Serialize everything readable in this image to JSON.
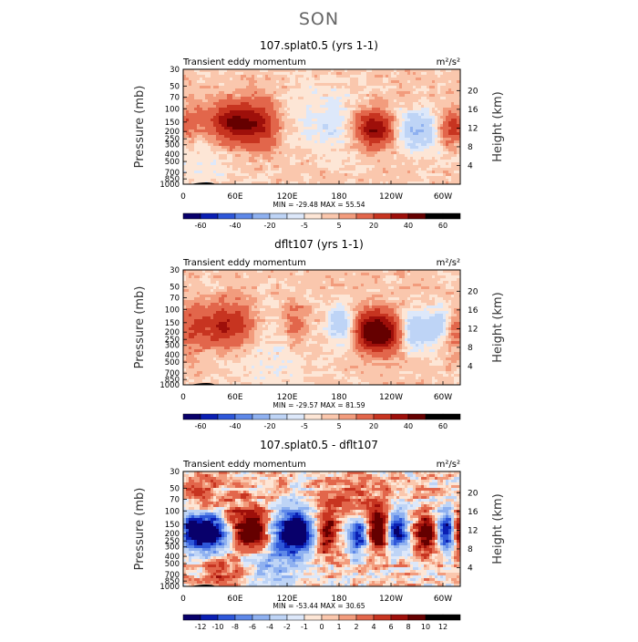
{
  "page": {
    "season": "SON"
  },
  "colors": {
    "seq": [
      "#08006b",
      "#0a1fb3",
      "#2e57d9",
      "#5e88e8",
      "#8fb1f0",
      "#bed4f6",
      "#dde8fa",
      "#fde6d6",
      "#fac7ad",
      "#f29c7d",
      "#e2664b",
      "#c73420",
      "#9e0f0a",
      "#650000"
    ],
    "diff": [
      "#08006b",
      "#0a1fb3",
      "#2e57d9",
      "#5e88e8",
      "#8fb1f0",
      "#bed4f6",
      "#dde8fa",
      "#fde6d6",
      "#fac7ad",
      "#f29c7d",
      "#e2664b",
      "#c73420",
      "#9e0f0a",
      "#650000"
    ]
  },
  "chart_data": [
    {
      "type": "heatmap",
      "title": "107.splat0.5 (yrs 1-1)",
      "subtitle": "Transient eddy momentum",
      "units": "m²/s²",
      "ylabel_left": "Pressure  (mb)",
      "ylabel_right": "Height  (km)",
      "pressure_ticks": [
        "30",
        "50",
        "70",
        "100",
        "150",
        "200",
        "250",
        "300",
        "400",
        "500",
        "700",
        "850",
        "1000"
      ],
      "pressure_values": [
        30,
        50,
        70,
        100,
        150,
        200,
        250,
        300,
        400,
        500,
        700,
        850,
        1000
      ],
      "height_ticks": [
        "20",
        "16",
        "12",
        "8",
        "4"
      ],
      "height_values": [
        20,
        16,
        12,
        8,
        4
      ],
      "x_ticks": [
        "0",
        "60E",
        "120E",
        "180",
        "120W",
        "60W"
      ],
      "x_values": [
        0,
        60,
        120,
        180,
        240,
        300
      ],
      "xlim": [
        0,
        320
      ],
      "min_max_text": "MIN = -29.48   MAX =  55.54",
      "colorbar_labels": [
        "-60",
        "-40",
        "-20",
        "-5",
        "5",
        "20",
        "40",
        "60"
      ],
      "colorbar_levels": [
        -70,
        -60,
        -50,
        -40,
        -30,
        -20,
        -10,
        -5,
        0,
        5,
        10,
        20,
        30,
        40,
        50,
        60,
        70
      ],
      "base": 2,
      "noise": 6,
      "blobs": [
        {
          "lon": 60,
          "p": 155,
          "v": 40,
          "slon": 22,
          "slogp": 0.13
        },
        {
          "lon": 90,
          "p": 160,
          "v": 18,
          "slon": 14,
          "slogp": 0.15
        },
        {
          "lon": 5,
          "p": 150,
          "v": 14,
          "slon": 10,
          "slogp": 0.12
        },
        {
          "lon": 225,
          "p": 185,
          "v": 38,
          "slon": 14,
          "slogp": 0.11
        },
        {
          "lon": 205,
          "p": 180,
          "v": 12,
          "slon": 14,
          "slogp": 0.12
        },
        {
          "lon": 310,
          "p": 180,
          "v": 26,
          "slon": 12,
          "slogp": 0.1
        },
        {
          "lon": 270,
          "p": 190,
          "v": -22,
          "slon": 22,
          "slogp": 0.12
        },
        {
          "lon": 185,
          "p": 170,
          "v": -8,
          "slon": 20,
          "slogp": 0.18
        },
        {
          "lon": 150,
          "p": 130,
          "v": -7,
          "slon": 22,
          "slogp": 0.2
        },
        {
          "lon": 20,
          "p": 500,
          "v": -6,
          "slon": 35,
          "slogp": 0.25
        }
      ]
    },
    {
      "type": "heatmap",
      "title": "dflt107 (yrs 1-1)",
      "subtitle": "Transient eddy momentum",
      "units": "m²/s²",
      "ylabel_left": "Pressure  (mb)",
      "ylabel_right": "Height  (km)",
      "pressure_ticks": [
        "30",
        "50",
        "70",
        "100",
        "150",
        "200",
        "250",
        "300",
        "400",
        "500",
        "700",
        "850",
        "1000"
      ],
      "pressure_values": [
        30,
        50,
        70,
        100,
        150,
        200,
        250,
        300,
        400,
        500,
        700,
        850,
        1000
      ],
      "height_ticks": [
        "20",
        "16",
        "12",
        "8",
        "4"
      ],
      "height_values": [
        20,
        16,
        12,
        8,
        4
      ],
      "x_ticks": [
        "0",
        "60E",
        "120E",
        "180",
        "120W",
        "60W"
      ],
      "x_values": [
        0,
        60,
        120,
        180,
        240,
        300
      ],
      "xlim": [
        0,
        320
      ],
      "min_max_text": "MIN = -29.57   MAX =  81.59",
      "colorbar_labels": [
        "-60",
        "-40",
        "-20",
        "-5",
        "5",
        "20",
        "40",
        "60"
      ],
      "colorbar_levels": [
        -70,
        -60,
        -50,
        -40,
        -30,
        -20,
        -10,
        -5,
        0,
        5,
        10,
        20,
        30,
        40,
        50,
        60,
        70
      ],
      "base": 2,
      "noise": 6,
      "blobs": [
        {
          "lon": 50,
          "p": 165,
          "v": 30,
          "slon": 22,
          "slogp": 0.14
        },
        {
          "lon": 10,
          "p": 175,
          "v": 15,
          "slon": 10,
          "slogp": 0.14
        },
        {
          "lon": 130,
          "p": 160,
          "v": 16,
          "slon": 10,
          "slogp": 0.13
        },
        {
          "lon": 220,
          "p": 195,
          "v": 52,
          "slon": 15,
          "slogp": 0.12
        },
        {
          "lon": 242,
          "p": 210,
          "v": 24,
          "slon": 10,
          "slogp": 0.12
        },
        {
          "lon": 312,
          "p": 180,
          "v": 14,
          "slon": 9,
          "slogp": 0.12
        },
        {
          "lon": 265,
          "p": 190,
          "v": -20,
          "slon": 18,
          "slogp": 0.12
        },
        {
          "lon": 183,
          "p": 160,
          "v": -20,
          "slon": 10,
          "slogp": 0.12
        },
        {
          "lon": 298,
          "p": 160,
          "v": -14,
          "slon": 10,
          "slogp": 0.12
        },
        {
          "lon": 100,
          "p": 400,
          "v": -6,
          "slon": 40,
          "slogp": 0.3
        }
      ]
    },
    {
      "type": "heatmap",
      "title": "107.splat0.5 - dflt107",
      "subtitle": "Transient eddy momentum",
      "units": "m²/s²",
      "ylabel_left": "Pressure  (mb)",
      "ylabel_right": "Height  (km)",
      "pressure_ticks": [
        "30",
        "50",
        "70",
        "100",
        "150",
        "200",
        "250",
        "300",
        "400",
        "500",
        "700",
        "850",
        "1000"
      ],
      "pressure_values": [
        30,
        50,
        70,
        100,
        150,
        200,
        250,
        300,
        400,
        500,
        700,
        850,
        1000
      ],
      "height_ticks": [
        "20",
        "16",
        "12",
        "8",
        "4"
      ],
      "height_values": [
        20,
        16,
        12,
        8,
        4
      ],
      "x_ticks": [
        "0",
        "60E",
        "120E",
        "180",
        "120W",
        "60W"
      ],
      "x_values": [
        0,
        60,
        120,
        180,
        240,
        300
      ],
      "xlim": [
        0,
        320
      ],
      "min_max_text": "MIN = -53.44   MAX =  30.65",
      "colorbar_labels": [
        "-12",
        "-10",
        "-8",
        "-6",
        "-4",
        "-2",
        "-1",
        "0",
        "1",
        "2",
        "4",
        "6",
        "8",
        "10",
        "12"
      ],
      "colorbar_levels": [
        -14,
        -12,
        -10,
        -8,
        -6,
        -4,
        -2,
        -1,
        0,
        1,
        2,
        4,
        6,
        8,
        10,
        12,
        14
      ],
      "base": 0,
      "noise": 4,
      "blobs": [
        {
          "lon": 30,
          "p": 190,
          "v": -18,
          "slon": 14,
          "slogp": 0.12
        },
        {
          "lon": 8,
          "p": 180,
          "v": -10,
          "slon": 8,
          "slogp": 0.12
        },
        {
          "lon": 80,
          "p": 185,
          "v": 16,
          "slon": 12,
          "slogp": 0.13
        },
        {
          "lon": 55,
          "p": 130,
          "v": 5,
          "slon": 10,
          "slogp": 0.12
        },
        {
          "lon": 130,
          "p": 185,
          "v": -18,
          "slon": 14,
          "slogp": 0.12
        },
        {
          "lon": 165,
          "p": 210,
          "v": 9,
          "slon": 8,
          "slogp": 0.15
        },
        {
          "lon": 205,
          "p": 200,
          "v": -16,
          "slon": 10,
          "slogp": 0.12
        },
        {
          "lon": 225,
          "p": 190,
          "v": 16,
          "slon": 12,
          "slogp": 0.12
        },
        {
          "lon": 245,
          "p": 190,
          "v": -16,
          "slon": 10,
          "slogp": 0.12
        },
        {
          "lon": 280,
          "p": 200,
          "v": 10,
          "slon": 10,
          "slogp": 0.12
        },
        {
          "lon": 305,
          "p": 185,
          "v": -12,
          "slon": 8,
          "slogp": 0.12
        },
        {
          "lon": 318,
          "p": 190,
          "v": 10,
          "slon": 6,
          "slogp": 0.12
        },
        {
          "lon": 100,
          "p": 420,
          "v": -5,
          "slon": 30,
          "slogp": 0.2
        },
        {
          "lon": 50,
          "p": 700,
          "v": 4,
          "slon": 20,
          "slogp": 0.15
        },
        {
          "lon": 200,
          "p": 80,
          "v": 4,
          "slon": 25,
          "slogp": 0.2
        },
        {
          "lon": 20,
          "p": 60,
          "v": 3,
          "slon": 20,
          "slogp": 0.2
        }
      ]
    }
  ]
}
